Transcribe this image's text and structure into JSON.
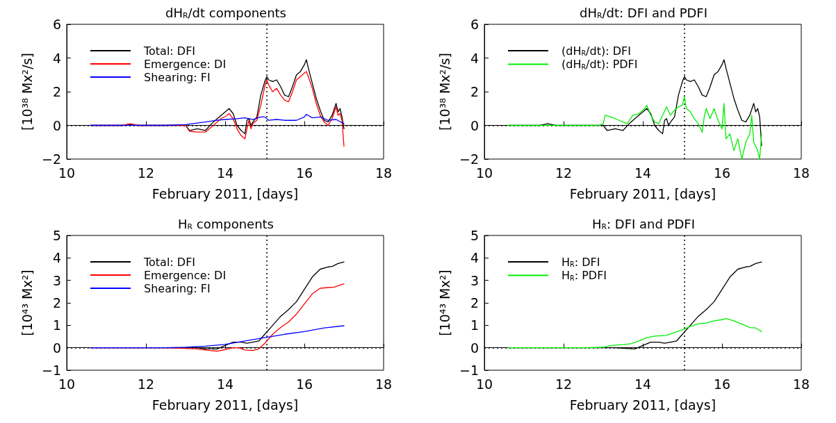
{
  "chart_data": [
    {
      "type": "line",
      "title": "dH$_{R}$/dt components",
      "xlabel": "February 2011, [days]",
      "ylabel": "[10³⁸ Mx²/s]",
      "xlim": [
        10,
        18
      ],
      "xticks": [
        10,
        12,
        14,
        16,
        18
      ],
      "ylim": [
        -2,
        6
      ],
      "yticks": [
        -2,
        0,
        2,
        4,
        6
      ],
      "grid": false,
      "legend": "top left",
      "line_style": "solid",
      "ref_lines": [
        {
          "axis": "x",
          "value": 15.05,
          "color": "#000000",
          "line_style": "dotted"
        },
        {
          "axis": "y",
          "value": 0,
          "color": "#000000",
          "line_style": "dotted"
        }
      ],
      "series": [
        {
          "name": "Total: DFI",
          "color": "#000000",
          "x": [
            10.6,
            11.0,
            11.4,
            11.6,
            11.8,
            12.2,
            12.6,
            12.9,
            13.0,
            13.1,
            13.3,
            13.5,
            13.7,
            13.9,
            14.05,
            14.1,
            14.2,
            14.3,
            14.4,
            14.5,
            14.55,
            14.6,
            14.65,
            14.7,
            14.8,
            14.9,
            15.0,
            15.05,
            15.1,
            15.2,
            15.3,
            15.4,
            15.5,
            15.6,
            15.7,
            15.8,
            15.9,
            16.0,
            16.05,
            16.1,
            16.2,
            16.3,
            16.4,
            16.5,
            16.6,
            16.7,
            16.8,
            16.85,
            16.9,
            16.95,
            17.0
          ],
          "values": [
            0,
            0,
            0,
            0.05,
            0,
            0,
            0,
            0,
            0,
            -0.3,
            -0.2,
            -0.3,
            0.2,
            0.6,
            0.9,
            1.0,
            0.7,
            0,
            -0.3,
            -0.5,
            0.3,
            0.4,
            0,
            0.2,
            0.5,
            1.8,
            2.6,
            2.9,
            2.7,
            2.6,
            2.7,
            2.3,
            1.8,
            1.7,
            2.3,
            3.0,
            3.2,
            3.6,
            3.9,
            3.4,
            2.5,
            1.6,
            0.9,
            0.3,
            0.2,
            0.6,
            1.3,
            0.8,
            1.0,
            0.5,
            -0.2
          ]
        },
        {
          "name": "Emergence: DI",
          "color": "#ff0000",
          "x": [
            10.6,
            11.0,
            11.4,
            11.6,
            11.8,
            12.2,
            12.6,
            12.9,
            13.0,
            13.1,
            13.3,
            13.5,
            13.7,
            13.9,
            14.05,
            14.1,
            14.2,
            14.3,
            14.4,
            14.5,
            14.55,
            14.6,
            14.65,
            14.7,
            14.8,
            14.9,
            15.0,
            15.05,
            15.1,
            15.2,
            15.3,
            15.4,
            15.5,
            15.6,
            15.7,
            15.8,
            15.9,
            16.0,
            16.05,
            16.1,
            16.2,
            16.3,
            16.4,
            16.5,
            16.6,
            16.7,
            16.8,
            16.85,
            16.9,
            16.95,
            17.0
          ],
          "values": [
            0,
            0,
            0,
            0.1,
            0,
            0,
            0,
            0,
            0,
            -0.35,
            -0.4,
            -0.4,
            0,
            0.4,
            0.6,
            0.7,
            0.4,
            -0.2,
            -0.6,
            -0.8,
            -0.2,
            0.3,
            -0.2,
            0.1,
            0.3,
            1.2,
            2.3,
            2.7,
            2.4,
            2.0,
            2.2,
            1.8,
            1.5,
            1.4,
            2.0,
            2.7,
            2.9,
            3.1,
            3.2,
            2.9,
            2.2,
            1.3,
            0.6,
            0.2,
            0,
            0.4,
            1.1,
            0.6,
            0.7,
            0.3,
            -1.25
          ]
        },
        {
          "name": "Shearing: FI",
          "color": "#0000ff",
          "x": [
            10.6,
            11.5,
            12.5,
            13.0,
            13.5,
            13.8,
            14.0,
            14.3,
            14.5,
            14.7,
            14.9,
            15.0,
            15.1,
            15.3,
            15.5,
            15.8,
            16.0,
            16.05,
            16.2,
            16.4,
            16.6,
            16.8,
            17.0
          ],
          "values": [
            0,
            0,
            0,
            0.05,
            0.2,
            0.3,
            0.35,
            0.4,
            0.45,
            0.35,
            0.5,
            0.5,
            0.3,
            0.35,
            0.3,
            0.3,
            0.5,
            0.65,
            0.45,
            0.5,
            0.3,
            0.35,
            0.1
          ]
        }
      ]
    },
    {
      "type": "line",
      "title": "dH$_{R}$/dt: DFI and PDFI",
      "xlabel": "February 2011, [days]",
      "ylabel": "[10³⁸ Mx²/s]",
      "xlim": [
        10,
        18
      ],
      "xticks": [
        10,
        12,
        14,
        16,
        18
      ],
      "ylim": [
        -2,
        6
      ],
      "yticks": [
        -2,
        0,
        2,
        4,
        6
      ],
      "grid": false,
      "legend": "top left",
      "line_style": "solid",
      "ref_lines": [
        {
          "axis": "x",
          "value": 15.05,
          "color": "#000000",
          "line_style": "dotted"
        },
        {
          "axis": "y",
          "value": 0,
          "color": "#000000",
          "line_style": "dotted"
        }
      ],
      "series": [
        {
          "name": "(dH$_{R}$/dt): DFI",
          "color": "#000000",
          "x": [
            10.6,
            11.0,
            11.4,
            11.6,
            11.8,
            12.2,
            12.6,
            12.9,
            13.0,
            13.1,
            13.3,
            13.5,
            13.7,
            13.9,
            14.05,
            14.1,
            14.2,
            14.3,
            14.4,
            14.5,
            14.55,
            14.6,
            14.65,
            14.7,
            14.8,
            14.9,
            15.0,
            15.05,
            15.1,
            15.2,
            15.3,
            15.4,
            15.5,
            15.6,
            15.7,
            15.8,
            15.9,
            16.0,
            16.05,
            16.1,
            16.2,
            16.3,
            16.4,
            16.5,
            16.6,
            16.7,
            16.8,
            16.85,
            16.9,
            16.95,
            17.0
          ],
          "values": [
            0,
            0,
            0,
            0.1,
            0,
            0,
            0,
            0,
            0,
            -0.3,
            -0.2,
            -0.3,
            0.2,
            0.6,
            0.9,
            1.0,
            0.7,
            0,
            -0.3,
            -0.5,
            0.3,
            0.4,
            0,
            0.2,
            0.5,
            1.8,
            2.6,
            2.9,
            2.7,
            2.6,
            2.7,
            2.3,
            1.8,
            1.7,
            2.3,
            3.0,
            3.2,
            3.6,
            3.9,
            3.4,
            2.5,
            1.6,
            0.9,
            0.3,
            0.2,
            0.6,
            1.3,
            0.8,
            1.0,
            0.5,
            -1.2
          ]
        },
        {
          "name": "(dH$_{R}$/dt): PDFI",
          "color": "#00ee00",
          "x": [
            10.6,
            11.5,
            12.5,
            12.9,
            13.0,
            13.05,
            13.2,
            13.4,
            13.6,
            13.75,
            13.9,
            14.05,
            14.1,
            14.2,
            14.3,
            14.4,
            14.5,
            14.6,
            14.7,
            14.8,
            14.9,
            15.0,
            15.05,
            15.1,
            15.2,
            15.3,
            15.4,
            15.5,
            15.55,
            15.6,
            15.7,
            15.8,
            15.9,
            16.0,
            16.05,
            16.1,
            16.2,
            16.3,
            16.4,
            16.5,
            16.6,
            16.7,
            16.75,
            16.8,
            16.9,
            16.95,
            17.0
          ],
          "values": [
            0,
            0,
            0,
            0,
            0.1,
            0.6,
            0.5,
            0.3,
            0.1,
            0.6,
            0.7,
            1.0,
            1.2,
            0.6,
            0.2,
            0.1,
            0.6,
            1.1,
            0.6,
            0.9,
            1.1,
            1.2,
            1.7,
            1.0,
            0.8,
            0.4,
            0.1,
            -0.4,
            0.5,
            1.0,
            0.4,
            1.0,
            0.3,
            -0.2,
            1.3,
            -0.8,
            -0.5,
            -1.5,
            -0.8,
            -2.0,
            -1.0,
            -0.5,
            0.6,
            -1.0,
            -1.5,
            -2.0,
            -0.5
          ]
        }
      ]
    },
    {
      "type": "line",
      "title": "H$_{R}$ components",
      "xlabel": "February 2011, [days]",
      "ylabel": "[10⁴³ Mx²]",
      "xlim": [
        10,
        18
      ],
      "xticks": [
        10,
        12,
        14,
        16,
        18
      ],
      "ylim": [
        -1,
        5
      ],
      "yticks": [
        -1,
        0,
        1,
        2,
        3,
        4,
        5
      ],
      "grid": false,
      "legend": "top left",
      "line_style": "solid",
      "ref_lines": [
        {
          "axis": "x",
          "value": 15.05,
          "color": "#000000",
          "line_style": "dotted"
        },
        {
          "axis": "y",
          "value": 0,
          "color": "#000000",
          "line_style": "dotted"
        }
      ],
      "series": [
        {
          "name": "Total: DFI",
          "color": "#000000",
          "x": [
            10.6,
            11.5,
            12.5,
            13.3,
            13.5,
            13.8,
            14.0,
            14.2,
            14.4,
            14.55,
            14.7,
            14.85,
            15.0,
            15.2,
            15.4,
            15.6,
            15.8,
            16.0,
            16.2,
            16.4,
            16.6,
            16.7,
            16.85,
            17.0
          ],
          "values": [
            0,
            0,
            0,
            0,
            -0.05,
            -0.05,
            0.1,
            0.25,
            0.25,
            0.2,
            0.25,
            0.3,
            0.6,
            1.0,
            1.4,
            1.7,
            2.05,
            2.6,
            3.15,
            3.5,
            3.6,
            3.62,
            3.75,
            3.82
          ]
        },
        {
          "name": "Emergence: DI",
          "color": "#ff0000",
          "x": [
            10.6,
            11.5,
            12.5,
            13.3,
            13.6,
            13.8,
            14.0,
            14.2,
            14.35,
            14.5,
            14.7,
            14.85,
            15.0,
            15.2,
            15.4,
            15.6,
            15.8,
            16.0,
            16.2,
            16.4,
            16.6,
            16.75,
            17.0
          ],
          "values": [
            0,
            0,
            0,
            -0.05,
            -0.12,
            -0.15,
            -0.08,
            0,
            0,
            -0.1,
            -0.12,
            -0.05,
            0.2,
            0.6,
            0.9,
            1.15,
            1.5,
            1.95,
            2.4,
            2.65,
            2.68,
            2.7,
            2.85
          ]
        },
        {
          "name": "Shearing: FI",
          "color": "#0000ff",
          "x": [
            10.6,
            11.5,
            12.5,
            13.0,
            13.5,
            14.0,
            14.5,
            15.0,
            15.5,
            16.0,
            16.5,
            17.0
          ],
          "values": [
            0,
            0,
            0,
            0.02,
            0.07,
            0.15,
            0.3,
            0.45,
            0.6,
            0.72,
            0.88,
            0.98
          ]
        }
      ]
    },
    {
      "type": "line",
      "title": "H$_{R}$: DFI and PDFI",
      "xlabel": "February 2011, [days]",
      "ylabel": "[10⁴³ Mx²]",
      "xlim": [
        10,
        18
      ],
      "xticks": [
        10,
        12,
        14,
        16,
        18
      ],
      "ylim": [
        -1,
        5
      ],
      "yticks": [
        -1,
        0,
        1,
        2,
        3,
        4,
        5
      ],
      "grid": false,
      "legend": "top left",
      "line_style": "solid",
      "ref_lines": [
        {
          "axis": "x",
          "value": 15.05,
          "color": "#000000",
          "line_style": "dotted"
        },
        {
          "axis": "y",
          "value": 0,
          "color": "#000000",
          "line_style": "dotted"
        }
      ],
      "series": [
        {
          "name": "H$_{R}$: DFI",
          "color": "#000000",
          "x": [
            10.6,
            11.5,
            12.5,
            13.3,
            13.5,
            13.8,
            14.0,
            14.2,
            14.4,
            14.55,
            14.7,
            14.85,
            15.0,
            15.2,
            15.4,
            15.6,
            15.8,
            16.0,
            16.2,
            16.4,
            16.6,
            16.7,
            16.85,
            17.0
          ],
          "values": [
            0,
            0,
            0,
            0,
            -0.02,
            -0.05,
            0.1,
            0.25,
            0.25,
            0.2,
            0.25,
            0.3,
            0.6,
            1.0,
            1.4,
            1.7,
            2.05,
            2.6,
            3.15,
            3.5,
            3.6,
            3.62,
            3.75,
            3.82
          ]
        },
        {
          "name": "H$_{R}$: PDFI",
          "color": "#00ee00",
          "x": [
            10.6,
            11.5,
            12.5,
            13.0,
            13.2,
            13.5,
            13.7,
            13.9,
            14.1,
            14.3,
            14.6,
            14.8,
            15.0,
            15.2,
            15.4,
            15.6,
            15.8,
            16.0,
            16.1,
            16.3,
            16.5,
            16.7,
            16.85,
            17.0
          ],
          "values": [
            0,
            0,
            0,
            0.02,
            0.1,
            0.14,
            0.18,
            0.3,
            0.45,
            0.52,
            0.55,
            0.68,
            0.8,
            0.95,
            1.07,
            1.1,
            1.2,
            1.25,
            1.3,
            1.2,
            1.05,
            0.9,
            0.88,
            0.72
          ]
        }
      ]
    }
  ]
}
